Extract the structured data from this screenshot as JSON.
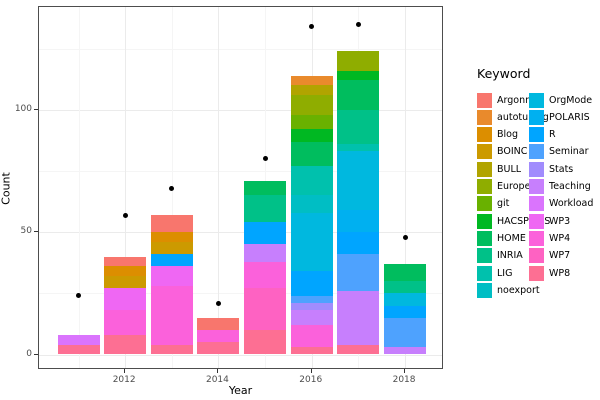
{
  "figure": {
    "x_axis_label": "Year",
    "y_axis_label": "Count",
    "legend_title": "Keyword"
  },
  "chart_data": {
    "type": "bar",
    "subtype": "stacked-bars-with-points",
    "title": "",
    "xlabel": "Year",
    "ylabel": "Count",
    "legend_title": "Keyword",
    "legend_position": "right",
    "grid": true,
    "ylim": [
      -6,
      141
    ],
    "y_major_ticks": [
      0,
      50,
      100
    ],
    "y_minor_ticks": [
      25,
      75,
      125
    ],
    "x_major_ticks": [
      2012,
      2014,
      2016,
      2018
    ],
    "x_minor_ticks": [
      2011,
      2013,
      2015,
      2017
    ],
    "keywords": [
      {
        "name": "Argonne",
        "color": "#F8766D"
      },
      {
        "name": "autotuning",
        "color": "#E98A2C"
      },
      {
        "name": "Blog",
        "color": "#DC8E00"
      },
      {
        "name": "BOINC",
        "color": "#CC9A00"
      },
      {
        "name": "BULL",
        "color": "#B1A400"
      },
      {
        "name": "Europe",
        "color": "#8FAD00"
      },
      {
        "name": "git",
        "color": "#69B100"
      },
      {
        "name": "HACSPECIS",
        "color": "#00B822"
      },
      {
        "name": "HOME",
        "color": "#00BD5E"
      },
      {
        "name": "INRIA",
        "color": "#00C188"
      },
      {
        "name": "LIG",
        "color": "#00C1AD"
      },
      {
        "name": "noexport",
        "color": "#00BEC4"
      },
      {
        "name": "OrgMode",
        "color": "#00B8DF"
      },
      {
        "name": "POLARIS",
        "color": "#00B0F0"
      },
      {
        "name": "R",
        "color": "#00A5FF"
      },
      {
        "name": "Seminar",
        "color": "#4EA2FE"
      },
      {
        "name": "Stats",
        "color": "#A18CFD"
      },
      {
        "name": "Teaching",
        "color": "#C77FFD"
      },
      {
        "name": "Workload",
        "color": "#DA74FD"
      },
      {
        "name": "WP3",
        "color": "#EF67F3"
      },
      {
        "name": "WP4",
        "color": "#FB61DB"
      },
      {
        "name": "WP7",
        "color": "#FE62C2"
      },
      {
        "name": "WP8",
        "color": "#FD6F93"
      }
    ],
    "stack_order": "bottom-to-top (reverse of legend order)",
    "bars": [
      {
        "year": 2011,
        "total": 8,
        "point": 24,
        "segments": [
          [
            "WP8",
            4
          ],
          [
            "Workload",
            4
          ]
        ]
      },
      {
        "year": 2012,
        "total": 40,
        "point": 57,
        "segments": [
          [
            "WP8",
            8
          ],
          [
            "WP4",
            10
          ],
          [
            "WP3",
            9
          ],
          [
            "BOINC",
            5
          ],
          [
            "Blog",
            4
          ],
          [
            "Argonne",
            4
          ]
        ]
      },
      {
        "year": 2013,
        "total": 57,
        "point": 68,
        "segments": [
          [
            "WP8",
            4
          ],
          [
            "WP4",
            24
          ],
          [
            "WP3",
            8
          ],
          [
            "R",
            5
          ],
          [
            "BOINC",
            5
          ],
          [
            "Blog",
            4
          ],
          [
            "Argonne",
            7
          ]
        ]
      },
      {
        "year": 2014,
        "total": 15,
        "point": 21,
        "segments": [
          [
            "WP8",
            5
          ],
          [
            "WP4",
            5
          ],
          [
            "Argonne",
            5
          ]
        ]
      },
      {
        "year": 2015,
        "total": 71,
        "point": 80,
        "segments": [
          [
            "WP8",
            10
          ],
          [
            "WP7",
            17
          ],
          [
            "WP4",
            11
          ],
          [
            "Teaching",
            7
          ],
          [
            "R",
            9
          ],
          [
            "INRIA",
            11
          ],
          [
            "HOME",
            6
          ]
        ]
      },
      {
        "year": 2016,
        "total": 114,
        "point": 134,
        "segments": [
          [
            "WP8",
            3
          ],
          [
            "WP4",
            9
          ],
          [
            "Teaching",
            6
          ],
          [
            "Stats",
            3
          ],
          [
            "Seminar",
            3
          ],
          [
            "R",
            10
          ],
          [
            "OrgMode",
            24
          ],
          [
            "noexport",
            7
          ],
          [
            "LIG",
            12
          ],
          [
            "HOME",
            10
          ],
          [
            "HACSPECIS",
            5
          ],
          [
            "git",
            6
          ],
          [
            "Europe",
            8
          ],
          [
            "BULL",
            4
          ],
          [
            "autotuning",
            4
          ]
        ]
      },
      {
        "year": 2017,
        "total": 124,
        "point": 135,
        "segments": [
          [
            "WP8",
            4
          ],
          [
            "Teaching",
            22
          ],
          [
            "Seminar",
            15
          ],
          [
            "R",
            9
          ],
          [
            "POLARIS",
            9
          ],
          [
            "OrgMode",
            24
          ],
          [
            "LIG",
            3
          ],
          [
            "INRIA",
            14
          ],
          [
            "HOME",
            12
          ],
          [
            "HACSPECIS",
            4
          ],
          [
            "Europe",
            8
          ]
        ]
      },
      {
        "year": 2018,
        "total": 37,
        "point": 48,
        "segments": [
          [
            "Teaching",
            3
          ],
          [
            "Seminar",
            12
          ],
          [
            "R",
            5
          ],
          [
            "OrgMode",
            5
          ],
          [
            "INRIA",
            5
          ],
          [
            "HOME",
            7
          ]
        ]
      }
    ]
  }
}
